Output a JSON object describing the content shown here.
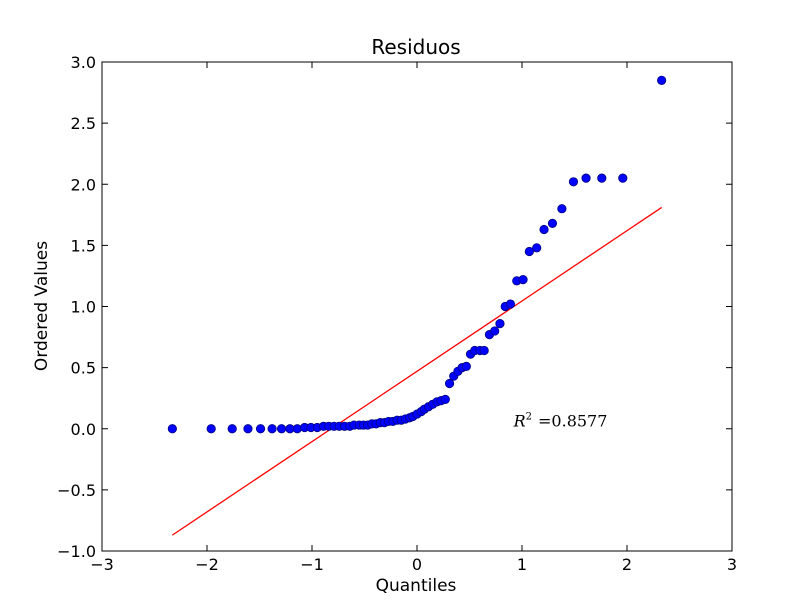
{
  "chart_data": {
    "type": "scatter",
    "title": "Residuos",
    "xlabel": "Quantiles",
    "ylabel": "Ordered Values",
    "xlim": [
      -3,
      3
    ],
    "ylim": [
      -1.0,
      3.0
    ],
    "xticks": [
      -3,
      -2,
      -1,
      0,
      1,
      2,
      3
    ],
    "xtick_labels": [
      "−3",
      "−2",
      "−1",
      "0",
      "1",
      "2",
      "3"
    ],
    "yticks": [
      -1.0,
      -0.5,
      0.0,
      0.5,
      1.0,
      1.5,
      2.0,
      2.5,
      3.0
    ],
    "ytick_labels": [
      "−1.0",
      "−0.5",
      "0.0",
      "0.5",
      "1.0",
      "1.5",
      "2.0",
      "2.5",
      "3.0"
    ],
    "grid": false,
    "series": [
      {
        "kind": "points",
        "color": "#0000ff",
        "edge_color": "#000080",
        "x": [
          -2.33,
          -1.96,
          -1.76,
          -1.61,
          -1.49,
          -1.38,
          -1.29,
          -1.21,
          -1.14,
          -1.07,
          -1.01,
          -0.95,
          -0.89,
          -0.84,
          -0.79,
          -0.74,
          -0.69,
          -0.64,
          -0.6,
          -0.55,
          -0.51,
          -0.47,
          -0.43,
          -0.39,
          -0.35,
          -0.31,
          -0.27,
          -0.23,
          -0.19,
          -0.15,
          -0.11,
          -0.07,
          -0.04,
          0.0,
          0.04,
          0.07,
          0.11,
          0.15,
          0.19,
          0.23,
          0.27,
          0.31,
          0.35,
          0.39,
          0.43,
          0.47,
          0.51,
          0.55,
          0.6,
          0.64,
          0.69,
          0.74,
          0.79,
          0.84,
          0.89,
          0.95,
          1.01,
          1.07,
          1.14,
          1.21,
          1.29,
          1.38,
          1.49,
          1.61,
          1.76,
          1.96,
          2.33
        ],
        "y": [
          0.0,
          0.0,
          0.0,
          0.0,
          0.0,
          0.0,
          0.0,
          0.0,
          0.0,
          0.01,
          0.01,
          0.01,
          0.02,
          0.02,
          0.02,
          0.02,
          0.02,
          0.02,
          0.03,
          0.03,
          0.03,
          0.03,
          0.04,
          0.04,
          0.05,
          0.05,
          0.06,
          0.06,
          0.07,
          0.07,
          0.08,
          0.09,
          0.1,
          0.12,
          0.14,
          0.16,
          0.18,
          0.2,
          0.22,
          0.23,
          0.24,
          0.37,
          0.43,
          0.47,
          0.5,
          0.51,
          0.61,
          0.64,
          0.64,
          0.64,
          0.77,
          0.8,
          0.86,
          1.0,
          1.02,
          1.21,
          1.22,
          1.45,
          1.48,
          1.63,
          1.68,
          1.8,
          2.02,
          2.05,
          2.05,
          2.05,
          2.85
        ]
      },
      {
        "kind": "fit-line",
        "color": "#ff0000",
        "x": [
          -2.33,
          2.33
        ],
        "y": [
          -0.87,
          1.81
        ]
      }
    ],
    "annotations": [
      {
        "text_prefix": "R",
        "superscript": "2",
        "text_suffix": "=0.8577",
        "x": 0.92,
        "y": 0.02
      }
    ]
  }
}
